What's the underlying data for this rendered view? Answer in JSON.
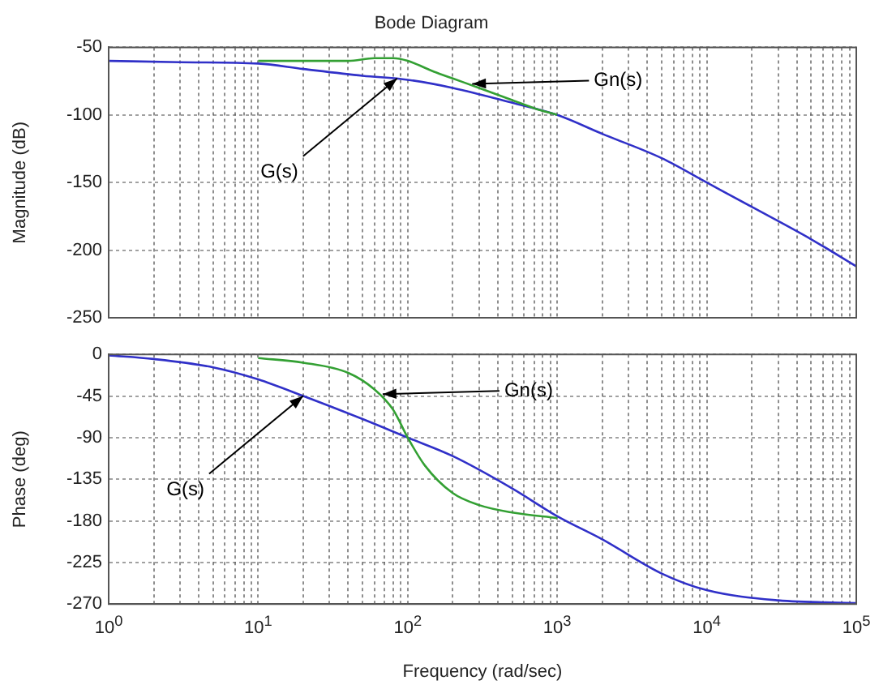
{
  "chart_data": [
    {
      "type": "line",
      "title": "Bode Diagram",
      "ylabel": "Magnitude (dB)",
      "log": "x",
      "grid": true,
      "legend": false,
      "marker": "none",
      "line_style": "solid",
      "tick_labels": "y",
      "xlim": [
        1,
        100000
      ],
      "xticks": [
        {
          "value": 1,
          "label": null
        },
        {
          "value": 10,
          "label": null
        },
        {
          "value": 100,
          "label": null
        },
        {
          "value": 1000,
          "label": null
        },
        {
          "value": 10000,
          "label": null
        },
        {
          "value": 100000,
          "label": null
        }
      ],
      "ylim": [
        -250,
        -50
      ],
      "yticks": [
        -250,
        -200,
        -150,
        -100,
        -50
      ],
      "series": [
        {
          "color": "#33a033",
          "x": [
            10,
            20,
            40,
            60,
            80,
            100,
            150,
            200,
            300,
            500,
            700,
            1000
          ],
          "values": [
            -60,
            -60,
            -60,
            -58,
            -58,
            -60,
            -68,
            -73,
            -80,
            -89,
            -95,
            -100
          ]
        },
        {
          "color": "#3030c8",
          "x": [
            1,
            3,
            10,
            20,
            50,
            100,
            200,
            500,
            1000,
            2000,
            5000,
            10000,
            20000,
            50000,
            100000
          ],
          "values": [
            -60,
            -61,
            -62,
            -66,
            -71,
            -74,
            -80,
            -91,
            -100,
            -114,
            -132,
            -150,
            -168,
            -192,
            -212
          ]
        }
      ],
      "annotations": [
        {
          "text": "Gn(s)",
          "x": 270,
          "y": -77
        },
        {
          "text": "G(s)",
          "x": 85,
          "y": -73
        }
      ]
    },
    {
      "type": "line",
      "xlabel": "Frequency (rad/sec)",
      "ylabel": "Phase (deg)",
      "log": "x",
      "grid": true,
      "legend": false,
      "marker": "none",
      "line_style": "solid",
      "xlim": [
        1,
        100000
      ],
      "xticks": [
        {
          "value": 1,
          "label": "10$^{0}$"
        },
        {
          "value": 10,
          "label": "10$^{1}$"
        },
        {
          "value": 100,
          "label": "10$^{2}$"
        },
        {
          "value": 1000,
          "label": "10$^{3}$"
        },
        {
          "value": 10000,
          "label": "10$^{4}$"
        },
        {
          "value": 100000,
          "label": "10$^{5}$"
        }
      ],
      "ylim": [
        -270,
        0
      ],
      "yticks": [
        -270,
        -225,
        -180,
        -135,
        -90,
        -45,
        0
      ],
      "series": [
        {
          "color": "#33a033",
          "x": [
            10,
            20,
            40,
            60,
            80,
            100,
            130,
            200,
            300,
            500,
            1000
          ],
          "values": [
            -4,
            -9,
            -20,
            -38,
            -60,
            -90,
            -120,
            -150,
            -163,
            -171,
            -177
          ]
        },
        {
          "color": "#3030c8",
          "x": [
            1,
            2,
            5,
            10,
            20,
            50,
            100,
            200,
            500,
            1000,
            2000,
            5000,
            10000,
            30000,
            100000
          ],
          "values": [
            -1,
            -5,
            -14,
            -27,
            -45,
            -70,
            -90,
            -110,
            -145,
            -175,
            -200,
            -237,
            -255,
            -266,
            -269
          ]
        }
      ],
      "annotations": [
        {
          "text": "Gn(s)",
          "x": 68,
          "y": -43
        },
        {
          "text": "G(s)",
          "x": 20,
          "y": -45
        }
      ]
    }
  ]
}
